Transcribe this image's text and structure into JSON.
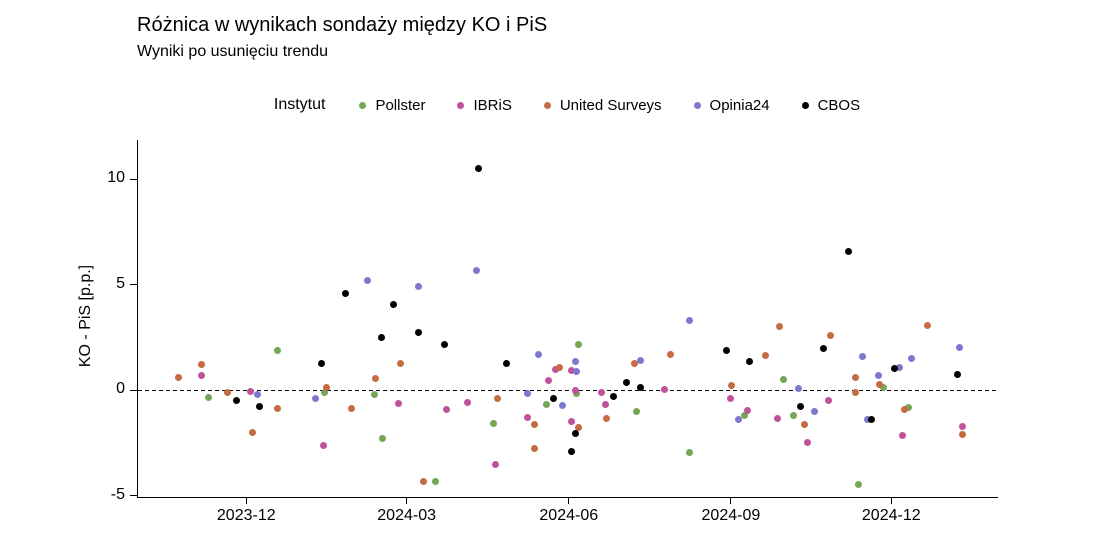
{
  "chart": {
    "title": "Różnica w wynikach sondaży między KO i PiS",
    "subtitle": "Wyniki po usunięciu trendu",
    "y_axis_label": "KO - PiS [p.p.]"
  },
  "legend": {
    "title": "Instytut"
  },
  "colors": {
    "pollster_green": "#73a656",
    "ibris_magenta": "#c1519a",
    "united_surveys_orange": "#c66a42",
    "opinia24_blue": "#7b78cd",
    "cbos_black": "#000000",
    "axis": "#000000",
    "background": "#ffffff"
  },
  "chart_data": {
    "type": "scatter",
    "title": "Różnica w wynikach sondaży między KO i PiS",
    "subtitle": "Wyniki po usunięciu trendu",
    "xlabel": "",
    "ylabel": "KO - PiS [p.p.]",
    "legend_title": "Instytut",
    "legend_position": "top",
    "grid": false,
    "reference_line_y": 0,
    "reference_line_style": "dashed",
    "ylim": [
      -5.05,
      11.87
    ],
    "xlim": [
      "2023-09-30",
      "2025-01-30"
    ],
    "y_ticks": [
      -5,
      0,
      5,
      10
    ],
    "x_ticks": [
      {
        "label": "2023-12",
        "date": "2023-12-01"
      },
      {
        "label": "2024-03",
        "date": "2024-03-01"
      },
      {
        "label": "2024-06",
        "date": "2024-06-01"
      },
      {
        "label": "2024-09",
        "date": "2024-09-01"
      },
      {
        "label": "2024-12",
        "date": "2024-12-01"
      }
    ],
    "series": [
      {
        "name": "Pollster",
        "color": "#73a656",
        "points": [
          [
            "2023-11-09",
            -0.35
          ],
          [
            "2023-12-18",
            1.9
          ],
          [
            "2024-01-14",
            -0.1
          ],
          [
            "2024-02-11",
            -0.2
          ],
          [
            "2024-02-16",
            -2.3
          ],
          [
            "2024-03-17",
            -4.3
          ],
          [
            "2024-04-19",
            -1.55
          ],
          [
            "2024-05-19",
            -0.65
          ],
          [
            "2024-06-05",
            -0.15
          ],
          [
            "2024-06-06",
            2.2
          ],
          [
            "2024-07-09",
            -1.0
          ],
          [
            "2024-08-08",
            -2.95
          ],
          [
            "2024-09-08",
            -1.2
          ],
          [
            "2024-09-30",
            0.5
          ],
          [
            "2024-10-06",
            -1.2
          ],
          [
            "2024-11-12",
            -4.45
          ],
          [
            "2024-11-26",
            0.15
          ],
          [
            "2024-12-10",
            -0.8
          ]
        ]
      },
      {
        "name": "IBRiS",
        "color": "#c1519a",
        "points": [
          [
            "2023-11-05",
            0.7
          ],
          [
            "2023-12-03",
            -0.05
          ],
          [
            "2024-01-13",
            -2.6
          ],
          [
            "2024-02-25",
            -0.6
          ],
          [
            "2024-03-23",
            -0.9
          ],
          [
            "2024-04-04",
            -0.55
          ],
          [
            "2024-04-20",
            -3.5
          ],
          [
            "2024-05-08",
            -1.3
          ],
          [
            "2024-05-20",
            0.45
          ],
          [
            "2024-05-24",
            1.0
          ],
          [
            "2024-06-02",
            0.95
          ],
          [
            "2024-06-02",
            -1.45
          ],
          [
            "2024-06-04",
            0.0
          ],
          [
            "2024-06-19",
            -0.1
          ],
          [
            "2024-06-21",
            -0.65
          ],
          [
            "2024-07-25",
            0.05
          ],
          [
            "2024-08-31",
            -0.4
          ],
          [
            "2024-09-10",
            -0.95
          ],
          [
            "2024-09-27",
            -1.35
          ],
          [
            "2024-10-14",
            -2.45
          ],
          [
            "2024-10-26",
            -0.5
          ],
          [
            "2024-12-07",
            -2.15
          ],
          [
            "2025-01-10",
            -1.7
          ]
        ]
      },
      {
        "name": "United Surveys",
        "color": "#c66a42",
        "points": [
          [
            "2023-10-23",
            0.6
          ],
          [
            "2023-11-05",
            1.25
          ],
          [
            "2023-11-20",
            -0.1
          ],
          [
            "2023-12-04",
            -2.0
          ],
          [
            "2023-12-18",
            -0.85
          ],
          [
            "2024-01-15",
            0.15
          ],
          [
            "2024-01-29",
            -0.85
          ],
          [
            "2024-02-12",
            0.55
          ],
          [
            "2024-02-26",
            1.3
          ],
          [
            "2024-03-10",
            -4.3
          ],
          [
            "2024-04-21",
            -0.4
          ],
          [
            "2024-05-12",
            -1.6
          ],
          [
            "2024-05-12",
            -2.75
          ],
          [
            "2024-05-26",
            1.1
          ],
          [
            "2024-06-06",
            -1.75
          ],
          [
            "2024-06-22",
            -1.35
          ],
          [
            "2024-07-08",
            1.3
          ],
          [
            "2024-07-28",
            1.7
          ],
          [
            "2024-09-01",
            0.25
          ],
          [
            "2024-09-20",
            1.65
          ],
          [
            "2024-09-28",
            3.05
          ],
          [
            "2024-10-12",
            -1.6
          ],
          [
            "2024-10-27",
            2.6
          ],
          [
            "2024-11-10",
            0.6
          ],
          [
            "2024-11-10",
            -0.1
          ],
          [
            "2024-11-24",
            0.3
          ],
          [
            "2024-12-08",
            -0.9
          ],
          [
            "2024-12-21",
            3.1
          ],
          [
            "2025-01-10",
            -2.1
          ]
        ]
      },
      {
        "name": "Opinia24",
        "color": "#7b78cd",
        "points": [
          [
            "2023-12-07",
            -0.2
          ],
          [
            "2024-01-09",
            -0.4
          ],
          [
            "2024-02-07",
            5.2
          ],
          [
            "2024-03-07",
            4.95
          ],
          [
            "2024-04-09",
            5.7
          ],
          [
            "2024-05-08",
            -0.15
          ],
          [
            "2024-05-14",
            1.7
          ],
          [
            "2024-05-28",
            -0.7
          ],
          [
            "2024-06-04",
            1.35
          ],
          [
            "2024-06-05",
            0.9
          ],
          [
            "2024-07-11",
            1.4
          ],
          [
            "2024-08-08",
            3.3
          ],
          [
            "2024-09-05",
            -1.4
          ],
          [
            "2024-10-09",
            0.1
          ],
          [
            "2024-10-18",
            -1.0
          ],
          [
            "2024-11-14",
            1.6
          ],
          [
            "2024-11-17",
            -1.4
          ],
          [
            "2024-11-23",
            0.7
          ],
          [
            "2024-12-05",
            1.1
          ],
          [
            "2024-12-12",
            1.5
          ],
          [
            "2025-01-08",
            2.05
          ]
        ]
      },
      {
        "name": "CBOS",
        "color": "#000000",
        "points": [
          [
            "2023-11-25",
            -0.5
          ],
          [
            "2023-12-08",
            -0.75
          ],
          [
            "2024-01-12",
            1.3
          ],
          [
            "2024-01-26",
            4.6
          ],
          [
            "2024-02-15",
            2.5
          ],
          [
            "2024-02-22",
            4.05
          ],
          [
            "2024-03-07",
            2.75
          ],
          [
            "2024-03-22",
            2.2
          ],
          [
            "2024-04-10",
            10.5
          ],
          [
            "2024-04-26",
            1.3
          ],
          [
            "2024-05-23",
            -0.4
          ],
          [
            "2024-06-02",
            -2.9
          ],
          [
            "2024-06-04",
            -2.05
          ],
          [
            "2024-06-26",
            -0.3
          ],
          [
            "2024-07-03",
            0.4
          ],
          [
            "2024-07-11",
            0.15
          ],
          [
            "2024-08-29",
            1.9
          ],
          [
            "2024-09-11",
            1.35
          ],
          [
            "2024-10-10",
            -0.75
          ],
          [
            "2024-10-23",
            2.0
          ],
          [
            "2024-11-06",
            6.6
          ],
          [
            "2024-11-19",
            -1.4
          ],
          [
            "2024-12-02",
            1.05
          ],
          [
            "2025-01-07",
            0.75
          ]
        ]
      }
    ]
  }
}
